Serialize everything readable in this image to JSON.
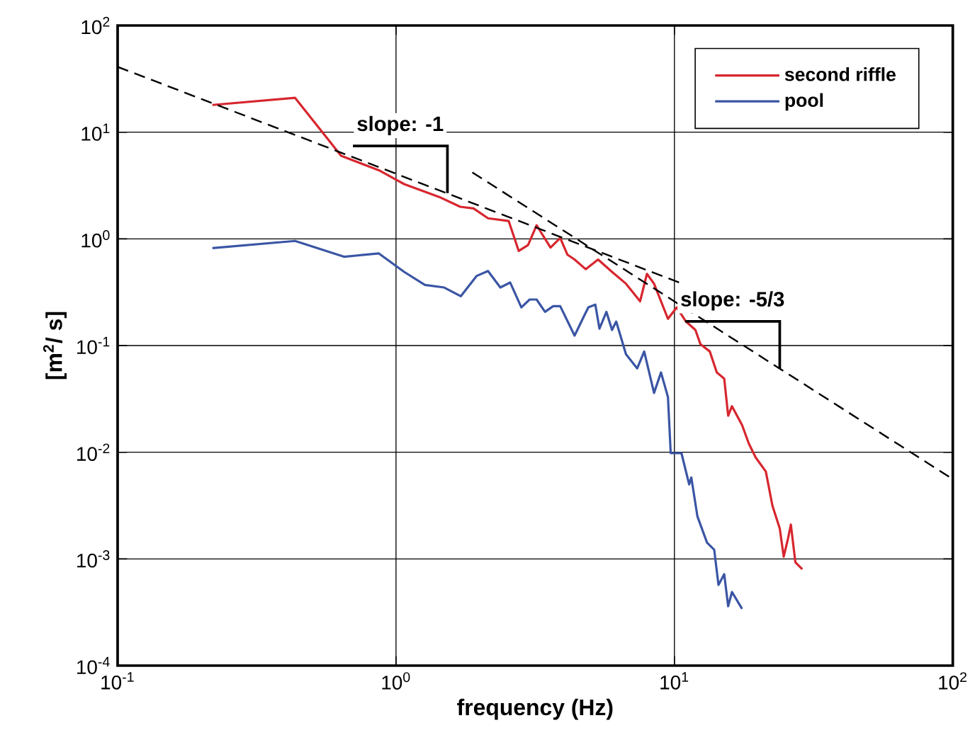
{
  "chart_data": {
    "type": "line",
    "xlabel": "frequency (Hz)",
    "ylabel": "[m$^{2}$/ s]",
    "log": "xy",
    "grid": true,
    "legend": "top right",
    "xlim": [
      0.1,
      100
    ],
    "ylim": [
      0.0001,
      100
    ],
    "xticks": [
      {
        "value": 0.1,
        "label": "10$^{-1}$"
      },
      {
        "value": 1,
        "label": "10$^{0}$"
      },
      {
        "value": 10,
        "label": "10$^{1}$"
      },
      {
        "value": 100,
        "label": "10$^{2}$"
      }
    ],
    "yticks": [
      {
        "value": 0.0001,
        "label": "10$^{-4}$"
      },
      {
        "value": 0.001,
        "label": "10$^{-3}$"
      },
      {
        "value": 0.01,
        "label": "10$^{-2}$"
      },
      {
        "value": 0.1,
        "label": "10$^{-1}$"
      },
      {
        "value": 1,
        "label": "10$^{0}$"
      },
      {
        "value": 10,
        "label": "10$^{1}$"
      },
      {
        "value": 100,
        "label": "10$^{2}$"
      }
    ],
    "series": [
      {
        "name": "second riffle",
        "color": "#d7262e",
        "x": [
          0.219,
          0.434,
          0.635,
          0.868,
          1.07,
          1.43,
          1.7,
          1.9,
          2.14,
          2.54,
          2.76,
          2.98,
          3.2,
          3.59,
          3.89,
          4.13,
          4.38,
          4.8,
          5.32,
          5.97,
          6.7,
          7.53,
          7.97,
          8.45,
          9.48,
          10.2,
          11.0,
          11.9,
          12.4,
          13.4,
          14.2,
          15.1,
          15.6,
          16.1,
          17.5,
          18.5,
          19.6,
          21.3,
          22.5,
          23.9,
          24.7,
          25.6,
          26.2,
          27.2,
          28.8
        ],
        "values": [
          18.0,
          21,
          6.0,
          4.4,
          3.26,
          2.47,
          2.0,
          1.93,
          1.56,
          1.47,
          0.77,
          0.875,
          1.34,
          0.83,
          1.02,
          0.71,
          0.64,
          0.52,
          0.64,
          0.49,
          0.38,
          0.26,
          0.47,
          0.38,
          0.178,
          0.228,
          0.168,
          0.14,
          0.103,
          0.088,
          0.056,
          0.049,
          0.022,
          0.027,
          0.018,
          0.0121,
          0.0089,
          0.0066,
          0.00315,
          0.00193,
          0.00105,
          0.00156,
          0.0021,
          0.00093,
          0.0008
        ]
      },
      {
        "name": "pool",
        "color": "#3a55a4",
        "x": [
          0.219,
          0.434,
          0.65,
          0.868,
          1.07,
          1.27,
          1.49,
          1.71,
          1.95,
          2.14,
          2.37,
          2.57,
          2.82,
          3.02,
          3.2,
          3.43,
          3.67,
          3.89,
          4.38,
          4.74,
          4.91,
          5.2,
          5.38,
          5.7,
          5.97,
          6.18,
          6.7,
          7.35,
          7.79,
          8.45,
          8.95,
          9.48,
          9.7,
          10.6,
          11.3,
          11.5,
          12.1,
          13.1,
          13.9,
          14.4,
          15.1,
          15.6,
          16.1,
          17.5
        ],
        "values": [
          0.82,
          0.957,
          0.68,
          0.73,
          0.49,
          0.37,
          0.35,
          0.29,
          0.45,
          0.5,
          0.35,
          0.39,
          0.228,
          0.27,
          0.27,
          0.207,
          0.234,
          0.234,
          0.124,
          0.19,
          0.228,
          0.242,
          0.144,
          0.207,
          0.14,
          0.168,
          0.083,
          0.061,
          0.088,
          0.036,
          0.056,
          0.033,
          0.0098,
          0.0098,
          0.005,
          0.0058,
          0.0025,
          0.00142,
          0.00122,
          0.00057,
          0.00072,
          0.00036,
          0.00049,
          0.00034
        ]
      },
      {
        "color": "#000000",
        "line_style": "dashed",
        "x": [
          0.1,
          10.4
        ],
        "values": [
          41,
          0.39
        ]
      },
      {
        "color": "#000000",
        "line_style": "dashed",
        "x": [
          1.88,
          100
        ],
        "values": [
          4.2,
          0.0056
        ]
      }
    ],
    "annotations": [
      {
        "text": "slope: -1",
        "x": 1.53,
        "y": 2.68
      },
      {
        "text": "slope: -5/3",
        "x": 23.9,
        "y": 0.0609
      }
    ]
  }
}
